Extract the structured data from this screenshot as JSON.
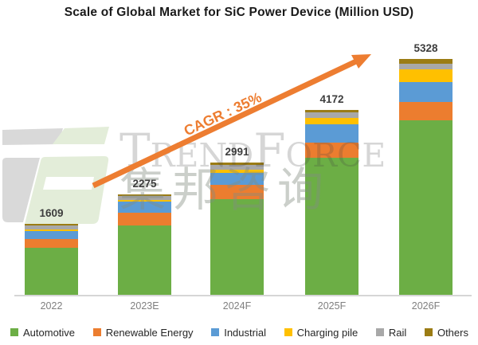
{
  "chart_data": {
    "type": "stacked-bar",
    "title": "Scale of Global Market for SiC Power Device (Million USD)",
    "categories": [
      "2022",
      "2023E",
      "2024F",
      "2025F",
      "2026F"
    ],
    "totals": [
      1609,
      2275,
      2991,
      4172,
      5328
    ],
    "series": [
      {
        "name": "Automotive",
        "color": "#6CAE45",
        "values": [
          1064,
          1575,
          2156,
          3102,
          3950
        ]
      },
      {
        "name": "Renewable Energy",
        "color": "#EC7D2F",
        "values": [
          190,
          279,
          333,
          344,
          410
        ]
      },
      {
        "name": "Industrial",
        "color": "#5B9BD5",
        "values": [
          190,
          249,
          260,
          411,
          450
        ]
      },
      {
        "name": "Charging pile",
        "color": "#FFC000",
        "values": [
          35,
          48,
          73,
          145,
          290
        ]
      },
      {
        "name": "Rail",
        "color": "#A8A8A8",
        "values": [
          87,
          83,
          109,
          121,
          125
        ]
      },
      {
        "name": "Others",
        "color": "#9B7C14",
        "values": [
          43,
          41,
          60,
          49,
          103
        ]
      }
    ],
    "annotation": "CAGR : 35%",
    "annotation_color": "#ED7D31",
    "legend_position": "bottom",
    "grid": false,
    "ylim": [
      0,
      5328
    ]
  },
  "watermark": {
    "brand": "TrendForce",
    "chinese": "集邦咨询"
  }
}
